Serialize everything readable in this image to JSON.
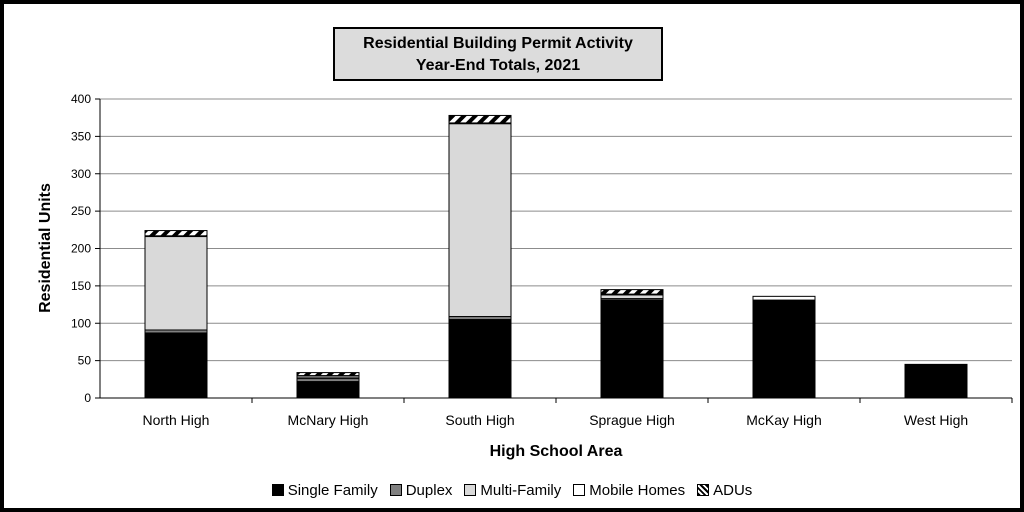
{
  "chart_data": {
    "type": "bar",
    "stacked": true,
    "title": "Residential Building Permit Activity",
    "subtitle": "Year-End Totals, 2021",
    "xlabel": "High School Area",
    "ylabel": "Residential Units",
    "ylim": [
      0,
      400
    ],
    "yticks": [
      0,
      50,
      100,
      150,
      200,
      250,
      300,
      350,
      400
    ],
    "grid": true,
    "legend_position": "bottom",
    "categories": [
      "North High",
      "McNary High",
      "South High",
      "Sprague High",
      "McKay High",
      "West High"
    ],
    "series": [
      {
        "name": "Single Family",
        "color": "#000000",
        "values": [
          87,
          22,
          105,
          131,
          131,
          44
        ]
      },
      {
        "name": "Duplex",
        "color": "#808080",
        "values": [
          4,
          4,
          4,
          2,
          0,
          0
        ]
      },
      {
        "name": "Multi-Family",
        "color": "#d9d9d9",
        "values": [
          125,
          2,
          258,
          5,
          0,
          0
        ]
      },
      {
        "name": "Mobile Homes",
        "color": "#ffffff",
        "values": [
          1,
          2,
          1,
          1,
          5,
          1
        ]
      },
      {
        "name": "ADUs",
        "color": "#000000",
        "pattern": "diagonal-stripes",
        "values": [
          7,
          4,
          10,
          6,
          0,
          0
        ]
      }
    ]
  }
}
